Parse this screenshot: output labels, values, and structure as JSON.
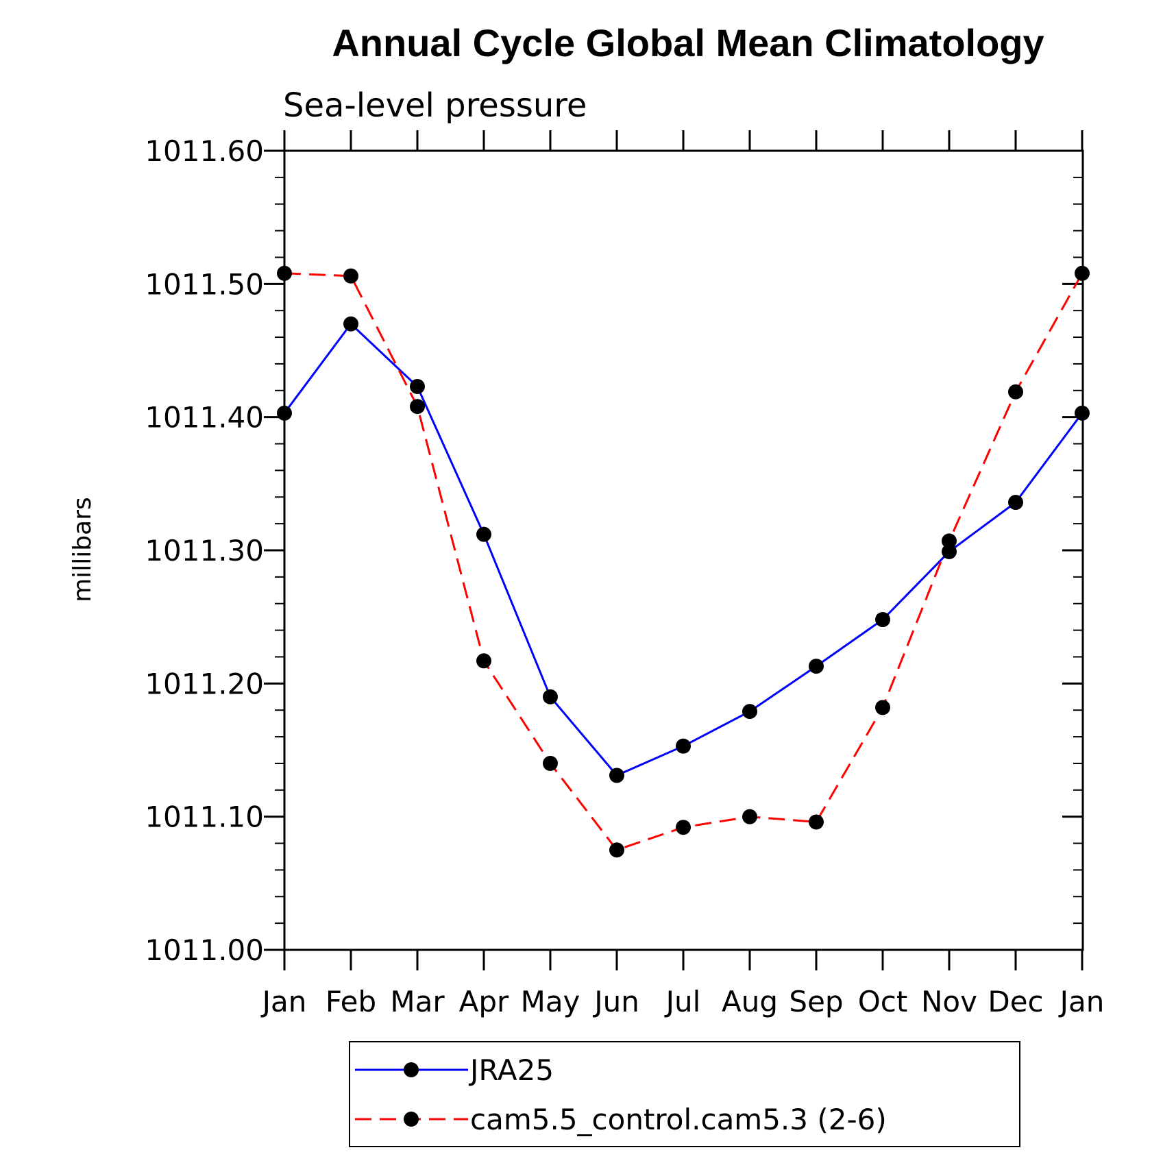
{
  "chart_data": {
    "type": "line",
    "title": "Annual Cycle Global Mean Climatology",
    "subtitle": "Sea-level pressure",
    "ylabel": "millibars",
    "xlabel": "",
    "categories": [
      "Jan",
      "Feb",
      "Mar",
      "Apr",
      "May",
      "Jun",
      "Jul",
      "Aug",
      "Sep",
      "Oct",
      "Nov",
      "Dec",
      "Jan"
    ],
    "ylim": [
      1011.0,
      1011.6
    ],
    "yticks": [
      "1011.00",
      "1011.10",
      "1011.20",
      "1011.30",
      "1011.40",
      "1011.50",
      "1011.60"
    ],
    "yticks_values": [
      1011.0,
      1011.1,
      1011.2,
      1011.3,
      1011.4,
      1011.5,
      1011.6
    ],
    "grid": false,
    "legend_position": "bottom",
    "series": [
      {
        "name": "JRA25",
        "color": "#0000ff",
        "dash": "solid",
        "values": [
          1011.403,
          1011.47,
          1011.423,
          1011.312,
          1011.19,
          1011.131,
          1011.153,
          1011.179,
          1011.213,
          1011.248,
          1011.299,
          1011.336,
          1011.403
        ]
      },
      {
        "name": "cam5.5_control.cam5.3 (2-6)",
        "color": "#ff0000",
        "dash": "dashed",
        "values": [
          1011.508,
          1011.506,
          1011.408,
          1011.217,
          1011.14,
          1011.075,
          1011.092,
          1011.1,
          1011.096,
          1011.182,
          1011.307,
          1011.419,
          1011.508
        ]
      }
    ]
  }
}
